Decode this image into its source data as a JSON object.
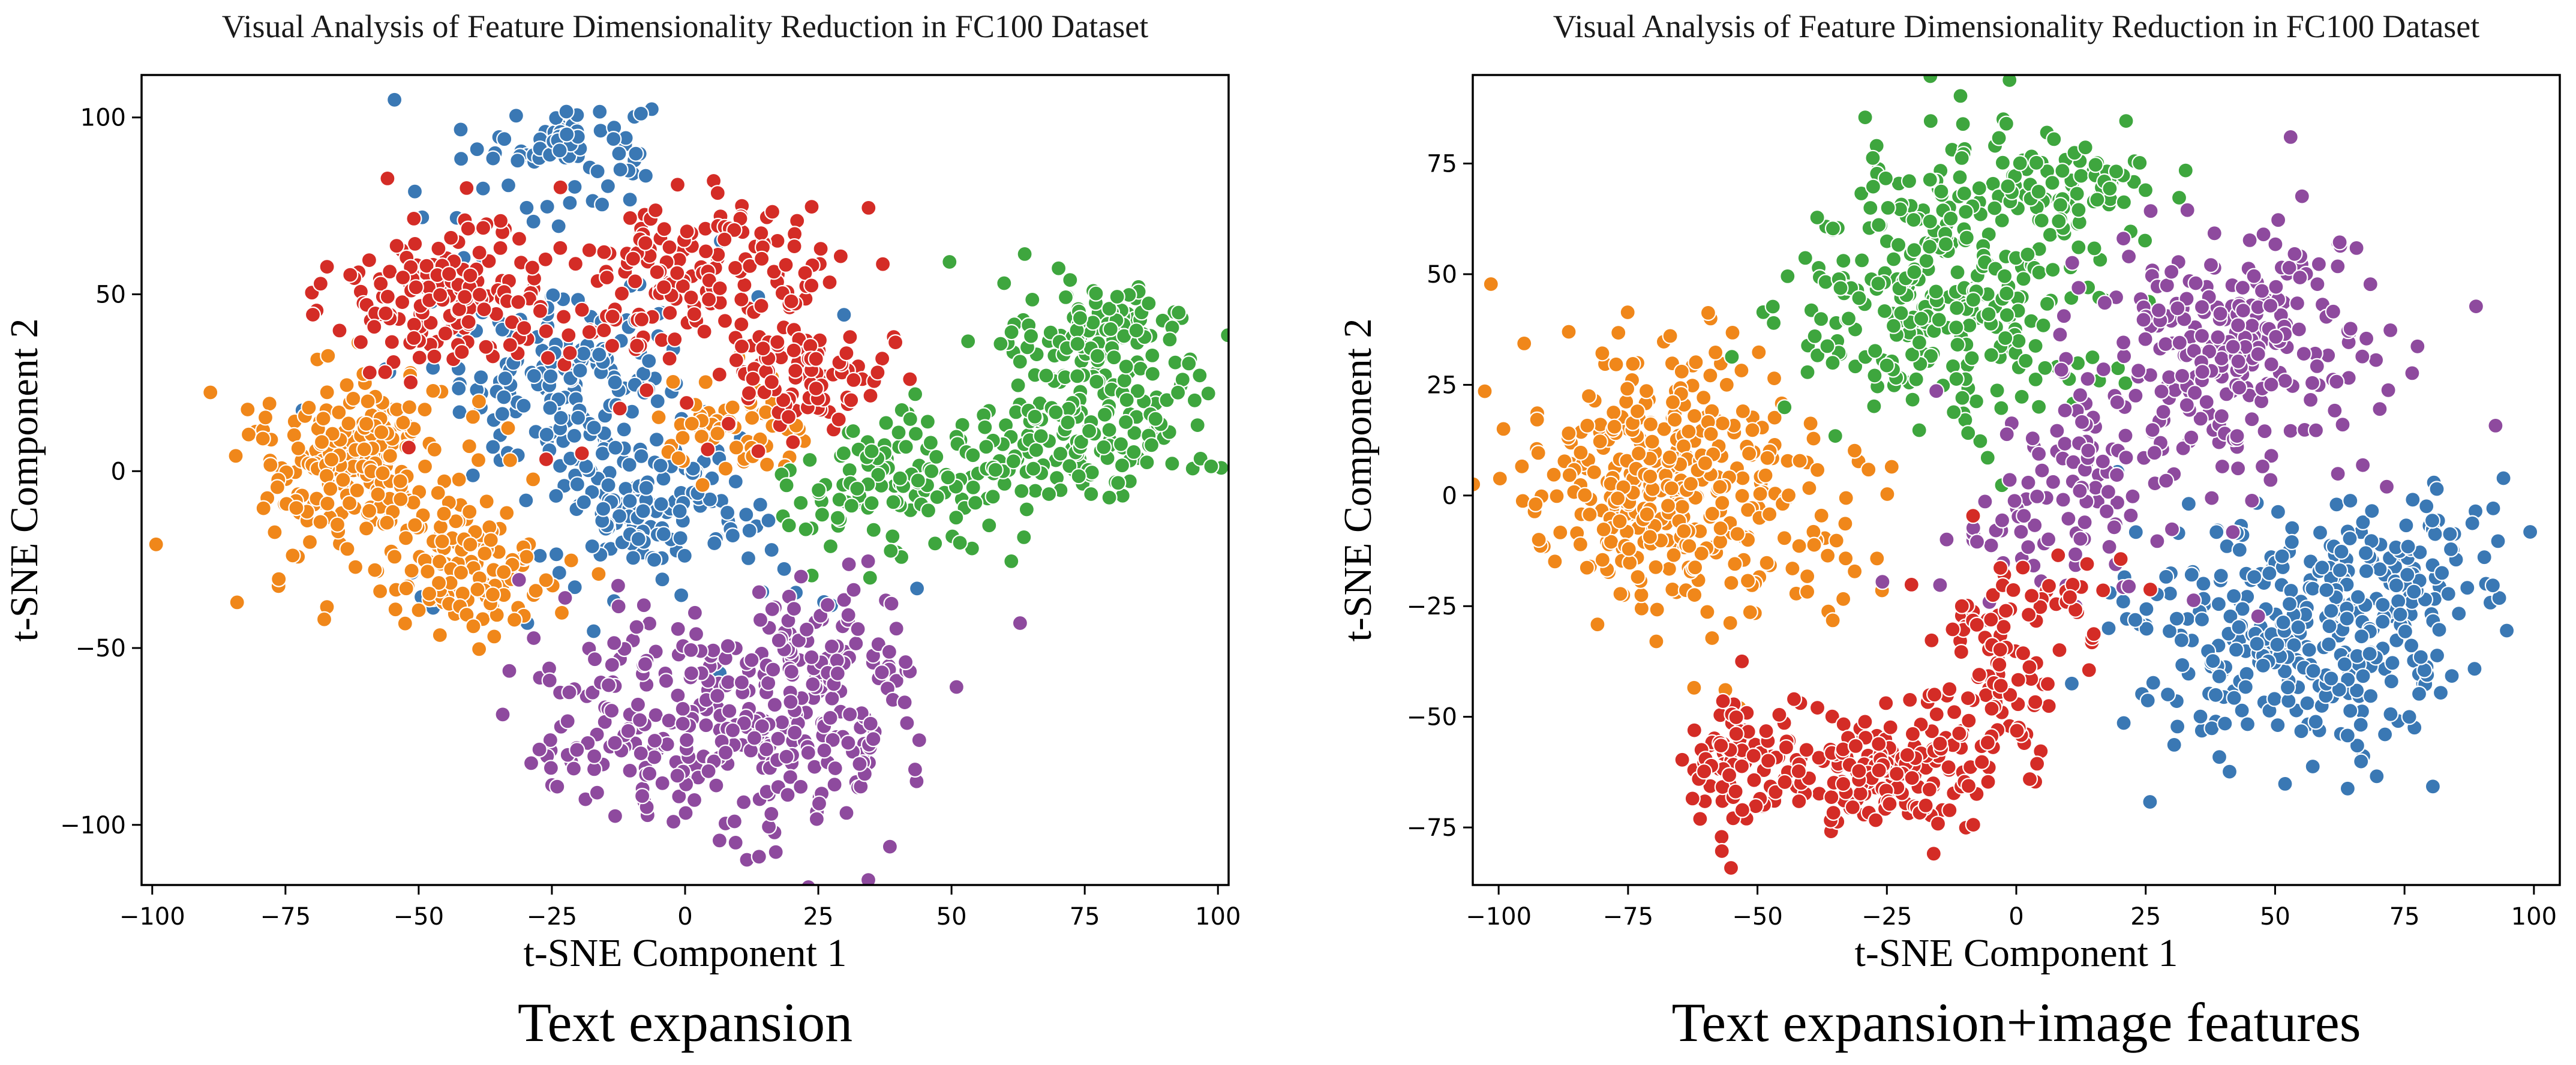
{
  "figure": {
    "captions": [
      "Text expansion",
      "Text expansion+image features"
    ]
  },
  "chart_data": [
    {
      "type": "scatter",
      "title": "Visual Analysis of Feature Dimensionality Reduction in FC100 Dataset",
      "xlabel": "t-SNE Component 1",
      "ylabel": "t-SNE Component 2",
      "xlim": [
        -102,
        102
      ],
      "ylim": [
        -117,
        112
      ],
      "xticks": [
        -100,
        -75,
        -50,
        -25,
        0,
        25,
        50,
        75,
        100
      ],
      "yticks": [
        -100,
        -50,
        0,
        50,
        100
      ],
      "tick_labels_x": [
        "−100",
        "−75",
        "−50",
        "−25",
        "0",
        "25",
        "50",
        "75",
        "100"
      ],
      "tick_labels_y": [
        "−100",
        "−50",
        "0",
        "50",
        "100"
      ],
      "grid": false,
      "legend": "none",
      "series": [
        {
          "name": "class-blue",
          "color": "#3a78b4",
          "clusters": [
            {
              "cx": -22,
              "cy": 93,
              "sx": 8,
              "sy": 6,
              "n": 70
            },
            {
              "cx": -24,
              "cy": 24,
              "sx": 9,
              "sy": 11,
              "n": 120
            },
            {
              "cx": -5,
              "cy": -10,
              "sx": 9,
              "sy": 9,
              "n": 110
            },
            {
              "cx": -20,
              "cy": 45,
              "sx": 18,
              "sy": 22,
              "n": 70
            },
            {
              "cx": -10,
              "cy": -30,
              "sx": 25,
              "sy": 14,
              "n": 40
            }
          ]
        },
        {
          "name": "class-orange",
          "color": "#f0871a",
          "clusters": [
            {
              "cx": -63,
              "cy": 5,
              "sx": 9,
              "sy": 13,
              "n": 180
            },
            {
              "cx": -40,
              "cy": -28,
              "sx": 9,
              "sy": 9,
              "n": 110
            },
            {
              "cx": 10,
              "cy": 10,
              "sx": 7,
              "sy": 7,
              "n": 60
            },
            {
              "cx": -55,
              "cy": -15,
              "sx": 14,
              "sy": 18,
              "n": 60
            }
          ]
        },
        {
          "name": "class-green",
          "color": "#3ea63e",
          "clusters": [
            {
              "cx": 78,
              "cy": 38,
              "sx": 9,
              "sy": 8,
              "n": 120
            },
            {
              "cx": 78,
              "cy": 12,
              "sx": 11,
              "sy": 10,
              "n": 120
            },
            {
              "cx": 50,
              "cy": 2,
              "sx": 14,
              "sy": 10,
              "n": 110
            },
            {
              "cx": 30,
              "cy": -12,
              "sx": 8,
              "sy": 8,
              "n": 40
            }
          ]
        },
        {
          "name": "class-red",
          "color": "#d42c26",
          "clusters": [
            {
              "cx": -45,
              "cy": 50,
              "sx": 10,
              "sy": 10,
              "n": 160
            },
            {
              "cx": 5,
              "cy": 55,
              "sx": 12,
              "sy": 11,
              "n": 140
            },
            {
              "cx": 25,
              "cy": 25,
              "sx": 7,
              "sy": 8,
              "n": 80
            },
            {
              "cx": -15,
              "cy": 45,
              "sx": 20,
              "sy": 15,
              "n": 50
            }
          ]
        },
        {
          "name": "class-purple",
          "color": "#8e4a9e",
          "clusters": [
            {
              "cx": 15,
              "cy": -75,
              "sx": 14,
              "sy": 14,
              "n": 200
            },
            {
              "cx": 25,
              "cy": -50,
              "sx": 10,
              "sy": 10,
              "n": 80
            },
            {
              "cx": -10,
              "cy": -65,
              "sx": 12,
              "sy": 14,
              "n": 80
            },
            {
              "cx": -22,
              "cy": -80,
              "sx": 4,
              "sy": 4,
              "n": 15
            }
          ]
        }
      ]
    },
    {
      "type": "scatter",
      "title": "Visual Analysis of Feature Dimensionality Reduction in FC100 Dataset",
      "xlabel": "t-SNE Component 1",
      "ylabel": "t-SNE Component 2",
      "xlim": [
        -105,
        105
      ],
      "ylim": [
        -88,
        95
      ],
      "xticks": [
        -100,
        -75,
        -50,
        -25,
        0,
        25,
        50,
        75,
        100
      ],
      "yticks": [
        -75,
        -50,
        -25,
        0,
        25,
        50,
        75
      ],
      "tick_labels_x": [
        "−100",
        "−75",
        "−50",
        "−25",
        "0",
        "25",
        "50",
        "75",
        "100"
      ],
      "tick_labels_y": [
        "−75",
        "−50",
        "−25",
        "0",
        "25",
        "50",
        "75"
      ],
      "grid": false,
      "legend": "none",
      "series": [
        {
          "name": "class-blue",
          "color": "#3a78b4",
          "clusters": [
            {
              "cx": 55,
              "cy": -32,
              "sx": 16,
              "sy": 13,
              "n": 330
            },
            {
              "cx": 80,
              "cy": -15,
              "sx": 8,
              "sy": 10,
              "n": 50
            }
          ]
        },
        {
          "name": "class-orange",
          "color": "#f0871a",
          "clusters": [
            {
              "cx": -70,
              "cy": 2,
              "sx": 12,
              "sy": 16,
              "n": 320
            },
            {
              "cx": -45,
              "cy": -5,
              "sx": 10,
              "sy": 15,
              "n": 60
            }
          ]
        },
        {
          "name": "class-green",
          "color": "#3ea63e",
          "clusters": [
            {
              "cx": -10,
              "cy": 50,
              "sx": 15,
              "sy": 17,
              "n": 270
            },
            {
              "cx": 10,
              "cy": 70,
              "sx": 8,
              "sy": 6,
              "n": 60
            },
            {
              "cx": -30,
              "cy": 40,
              "sx": 12,
              "sy": 12,
              "n": 60
            }
          ]
        },
        {
          "name": "class-purple",
          "color": "#8e4a9e",
          "clusters": [
            {
              "cx": 42,
              "cy": 35,
              "sx": 14,
              "sy": 14,
              "n": 250
            },
            {
              "cx": 15,
              "cy": 5,
              "sx": 12,
              "sy": 12,
              "n": 90
            },
            {
              "cx": 0,
              "cy": -10,
              "sx": 8,
              "sy": 8,
              "n": 25
            }
          ]
        },
        {
          "name": "class-red",
          "color": "#d42c26",
          "clusters": [
            {
              "cx": -25,
              "cy": -62,
              "sx": 10,
              "sy": 7,
              "n": 170
            },
            {
              "cx": -53,
              "cy": -60,
              "sx": 5,
              "sy": 7,
              "n": 80
            },
            {
              "cx": -3,
              "cy": -40,
              "sx": 8,
              "sy": 13,
              "n": 100
            },
            {
              "cx": 10,
              "cy": -22,
              "sx": 6,
              "sy": 5,
              "n": 20
            }
          ]
        }
      ]
    }
  ]
}
